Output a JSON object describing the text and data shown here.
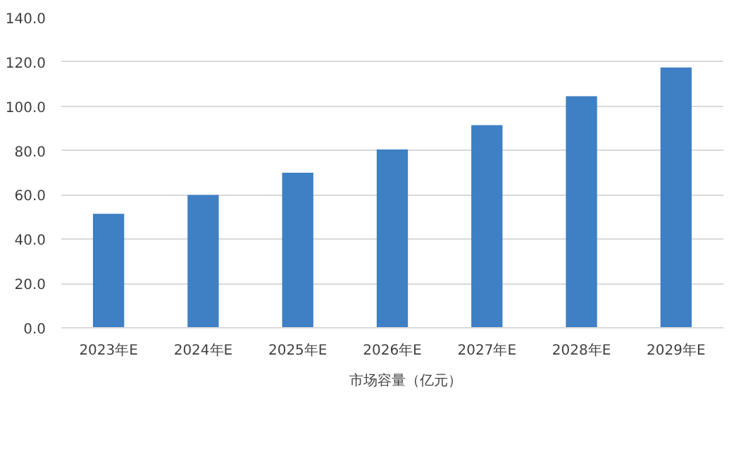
{
  "chart_data": {
    "type": "bar",
    "categories": [
      "2023年E",
      "2024年E",
      "2025年E",
      "2026年E",
      "2027年E",
      "2028年E",
      "2029年E"
    ],
    "series": [
      {
        "name": "市场容量（亿元）",
        "color": "#3f7fc4",
        "values": [
          51.5,
          60,
          70,
          80.5,
          91.5,
          104.5,
          117.5
        ]
      }
    ],
    "ylim": [
      0,
      140
    ],
    "yticks": [
      {
        "value": 0,
        "label": "0.0"
      },
      {
        "value": 20,
        "label": "20.0"
      },
      {
        "value": 40,
        "label": "40.0"
      },
      {
        "value": 60,
        "label": "60.0"
      },
      {
        "value": 80,
        "label": "80.0"
      },
      {
        "value": 100,
        "label": "100.0"
      },
      {
        "value": 120,
        "label": "120.0"
      },
      {
        "value": 140,
        "label": "140.0"
      }
    ],
    "grid": "y",
    "legend": "bottom"
  }
}
